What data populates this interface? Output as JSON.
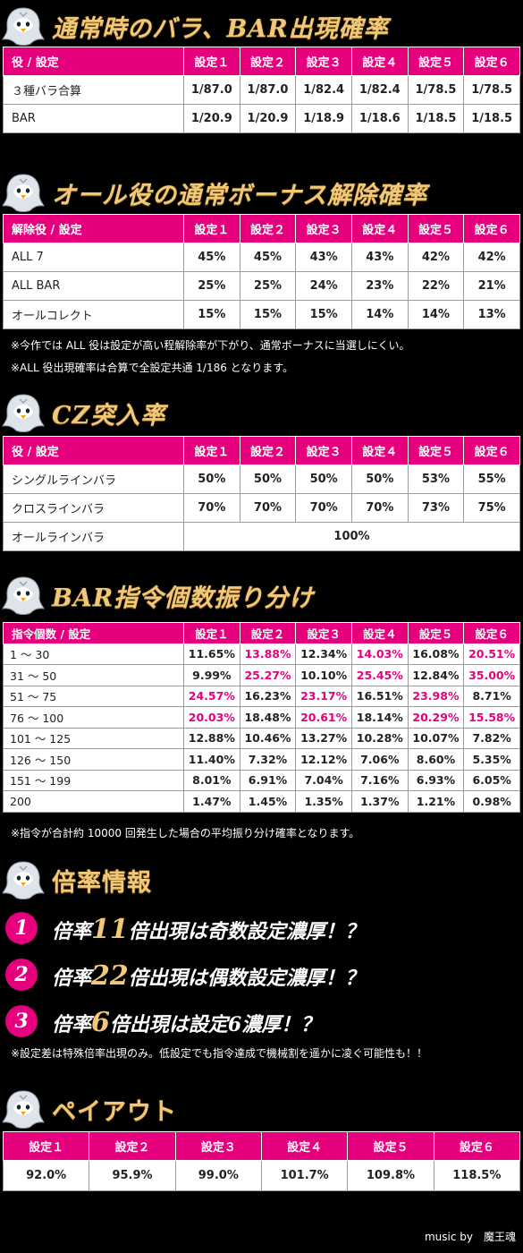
{
  "sections": {
    "bara": {
      "title": "通常時のバラ、BAR出現確率",
      "headers": [
        "役 / 設定",
        "設定１",
        "設定２",
        "設定３",
        "設定４",
        "設定５",
        "設定６"
      ],
      "rows": [
        [
          "３種バラ合算",
          "1/87.0",
          "1/87.0",
          "1/82.4",
          "1/82.4",
          "1/78.5",
          "1/78.5"
        ],
        [
          "BAR",
          "1/20.9",
          "1/20.9",
          "1/18.9",
          "1/18.6",
          "1/18.5",
          "1/18.5"
        ]
      ]
    },
    "allrole": {
      "title": "オール役の通常ボーナス解除確率",
      "headers": [
        "解除役 / 設定",
        "設定１",
        "設定２",
        "設定３",
        "設定４",
        "設定５",
        "設定６"
      ],
      "rows": [
        [
          "ALL 7",
          "45%",
          "45%",
          "43%",
          "43%",
          "42%",
          "42%"
        ],
        [
          "ALL BAR",
          "25%",
          "25%",
          "24%",
          "23%",
          "22%",
          "21%"
        ],
        [
          "オールコレクト",
          "15%",
          "15%",
          "15%",
          "14%",
          "14%",
          "13%"
        ]
      ],
      "notes": [
        "※今作では ALL 役は設定が高い程解除率が下がり、通常ボーナスに当選しにくい。",
        "※ALL 役出現確率は合算で全設定共通 1/186 となります。"
      ]
    },
    "cz": {
      "title": "CZ突入率",
      "headers": [
        "役 / 設定",
        "設定１",
        "設定２",
        "設定３",
        "設定４",
        "設定５",
        "設定６"
      ],
      "rows": [
        [
          "シングルラインバラ",
          "50%",
          "50%",
          "50%",
          "50%",
          "53%",
          "55%"
        ],
        [
          "クロスラインバラ",
          "70%",
          "70%",
          "70%",
          "70%",
          "73%",
          "75%"
        ]
      ],
      "merged_row": {
        "label": "オールラインバラ",
        "value": "100%"
      }
    },
    "barcmd": {
      "title": "BAR指令個数振り分け",
      "headers": [
        "指令個数 / 設定",
        "設定１",
        "設定２",
        "設定３",
        "設定４",
        "設定５",
        "設定６"
      ],
      "rows": [
        [
          "1 〜 30",
          "11.65%",
          "13.88%",
          "12.34%",
          "14.03%",
          "16.08%",
          "20.51%"
        ],
        [
          "31 〜 50",
          "9.99%",
          "25.27%",
          "10.10%",
          "25.45%",
          "12.84%",
          "35.00%"
        ],
        [
          "51 〜 75",
          "24.57%",
          "16.23%",
          "23.17%",
          "16.51%",
          "23.98%",
          "8.71%"
        ],
        [
          "76 〜 100",
          "20.03%",
          "18.48%",
          "20.61%",
          "18.14%",
          "20.29%",
          "15.58%"
        ],
        [
          "101 〜 125",
          "12.88%",
          "10.46%",
          "13.27%",
          "10.28%",
          "10.07%",
          "7.82%"
        ],
        [
          "126 〜 150",
          "11.40%",
          "7.32%",
          "12.12%",
          "7.06%",
          "8.60%",
          "5.35%"
        ],
        [
          "151 〜 199",
          "8.01%",
          "6.91%",
          "7.04%",
          "7.16%",
          "6.93%",
          "6.05%"
        ],
        [
          "200",
          "1.47%",
          "1.45%",
          "1.35%",
          "1.37%",
          "1.21%",
          "0.98%"
        ]
      ],
      "highlight_color": "#e6007e",
      "highlights": [
        [
          0,
          2
        ],
        [
          0,
          4
        ],
        [
          0,
          6
        ],
        [
          1,
          2
        ],
        [
          1,
          4
        ],
        [
          1,
          6
        ],
        [
          2,
          1
        ],
        [
          2,
          3
        ],
        [
          2,
          5
        ],
        [
          3,
          1
        ],
        [
          3,
          3
        ],
        [
          3,
          5
        ],
        [
          3,
          6
        ]
      ],
      "note": "※指令が合計約 10000 回発生した場合の平均振り分け確率となります。"
    },
    "multiplier": {
      "title": "倍率情報",
      "items": [
        {
          "num": "1",
          "pre": "倍率",
          "value": "11",
          "post": "倍出現は奇数設定濃厚！？"
        },
        {
          "num": "2",
          "pre": "倍率",
          "value": "22",
          "post": "倍出現は偶数設定濃厚！？"
        },
        {
          "num": "3",
          "pre": "倍率",
          "value": "6",
          "post": "倍出現は設定6濃厚！？"
        }
      ],
      "note": "※設定差は特殊倍率出現のみ。低設定でも指令達成で機械割を遥かに凌ぐ可能性も！！"
    },
    "payout": {
      "title": "ペイアウト",
      "headers": [
        "設定１",
        "設定２",
        "設定３",
        "設定４",
        "設定５",
        "設定６"
      ],
      "values": [
        "92.0%",
        "95.9%",
        "99.0%",
        "101.7%",
        "109.8%",
        "118.5%"
      ]
    }
  },
  "credit": "music by　魔王魂",
  "colors": {
    "accent": "#e6007e",
    "gold": "#f1c877",
    "background": "#000000"
  },
  "icons": {
    "section_mascot": "penguin-mascot-icon"
  }
}
